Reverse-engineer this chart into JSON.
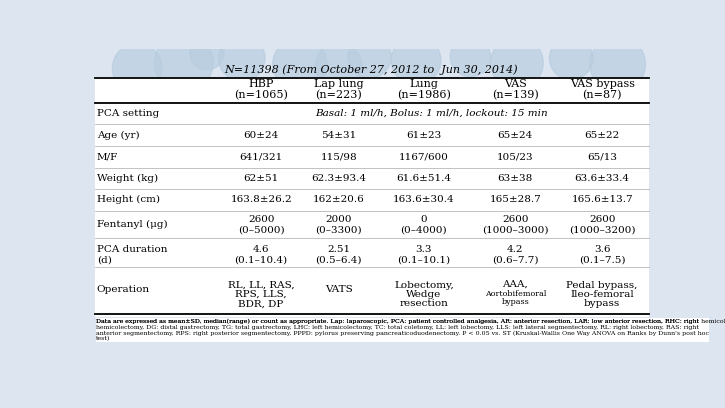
{
  "title": "N=11398 (From October 27, 2012 to  Jun 30, 2014)",
  "col_headers": [
    [
      "HBP",
      "(n=1065)"
    ],
    [
      "Lap lung",
      "(n=223)"
    ],
    [
      "Lung",
      "(n=1986)"
    ],
    [
      "VAS",
      "(n=139)"
    ],
    [
      "VAS bypass",
      "(n=87)"
    ]
  ],
  "rows": [
    {
      "label": "PCA setting",
      "values": [
        "Basal: 1 ml/h, Bolus: 1 ml/h, lockout: 15 min"
      ],
      "span": true
    },
    {
      "label": "Age (yr)",
      "values": [
        "60±24",
        "54±31",
        "61±23",
        "65±24",
        "65±22"
      ],
      "span": false
    },
    {
      "label": "M/F",
      "values": [
        "641/321",
        "115/98",
        "1167/600",
        "105/23",
        "65/13"
      ],
      "span": false
    },
    {
      "label": "Weight (kg)",
      "values": [
        "62±51",
        "62.3±93.4",
        "61.6±51.4",
        "63±38",
        "63.6±33.4"
      ],
      "span": false
    },
    {
      "label": "Height (cm)",
      "values": [
        "163.8±26.2",
        "162±20.6",
        "163.6±30.4",
        "165±28.7",
        "165.6±13.7"
      ],
      "span": false
    },
    {
      "label": "Fentanyl (μg)",
      "values": [
        "2600\n(0–5000)",
        "2000\n(0–3300)",
        "0\n(0–4000)",
        "2600\n(1000–3000)",
        "2600\n(1000–3200)"
      ],
      "span": false
    },
    {
      "label": "PCA duration\n(d)",
      "values": [
        "4.6\n(0.1–10.4)",
        "2.51\n(0.5–6.4)",
        "3.3\n(0.1–10.1)",
        "4.2\n(0.6–7.7)",
        "3.6\n(0.1–7.5)"
      ],
      "span": false
    },
    {
      "label": "Operation",
      "values": [
        "RL, LL, RAS,\nRPS, LLS,\nBDR, DP",
        "VATS",
        "Lobectomy,\nWedge\nresection",
        "AAA,\nAortobifemoral\nbypass",
        "Pedal bypass,\nIleo-femoral\nbypass"
      ],
      "op_small": [
        false,
        false,
        false,
        true,
        false
      ],
      "span": false
    }
  ],
  "footnote": "Data are expressed as mean±SD, median(range) or count as appropriate. Lap: laparoscopic, PCA: patient controlled analgesia, AR: anterior resection, LAR: low anterior resection, RHC: right hemicolectomy, DG: distal gastrectomy, TG: total gastrectomy, LHC: left hemicolectomy, TC: total coletomy, LL: left lobectomy, LLS: left lateral segmentectomy, RL: right lobectomy, RAS: right anterior segmentectomy, RPS: right posterior segmentectomy, PPPD: pylorus preserving pancreaticoduodenectomy. P < 0.05 vs. ST (Kruskal-Wallis One Way ANOVA on Ranks by Dunn's post hoc test)",
  "bg_color": "#dde6f0",
  "watermark_color": "#b8cde0"
}
